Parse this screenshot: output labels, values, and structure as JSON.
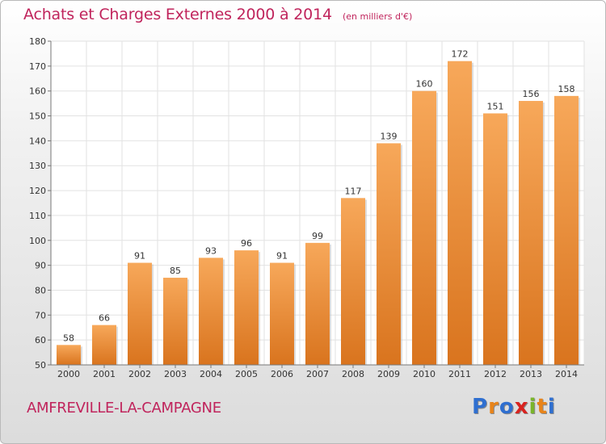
{
  "title": "Achats et Charges Externes 2000 à 2014",
  "unit": "(en milliers d'€)",
  "commune": "AMFREVILLE-LA-CAMPAGNE",
  "logo": {
    "letters": [
      "P",
      "r",
      "o",
      "x",
      "i",
      "t",
      "i"
    ],
    "colors": [
      "#2f6fd0",
      "#e8841a",
      "#2f6fd0",
      "#d8231f",
      "#7ab52b",
      "#e8841a",
      "#2f6fd0"
    ]
  },
  "colors": {
    "bar_top": "#f7a85a",
    "bar_bottom": "#d9741e",
    "grid": "#e2e2e2",
    "axis": "#777777"
  },
  "chart_data": {
    "type": "bar",
    "title": "Achats et Charges Externes 2000 à 2014",
    "categories": [
      "2000",
      "2001",
      "2002",
      "2003",
      "2004",
      "2005",
      "2006",
      "2007",
      "2008",
      "2009",
      "2010",
      "2011",
      "2012",
      "2013",
      "2014"
    ],
    "values": [
      58,
      66,
      91,
      85,
      93,
      96,
      91,
      99,
      117,
      139,
      160,
      172,
      151,
      156,
      158
    ],
    "ylim": [
      50,
      180
    ],
    "yticks": [
      50,
      60,
      70,
      80,
      90,
      100,
      110,
      120,
      130,
      140,
      150,
      160,
      170,
      180
    ],
    "grid": true,
    "xlabel": "",
    "ylabel": ""
  }
}
